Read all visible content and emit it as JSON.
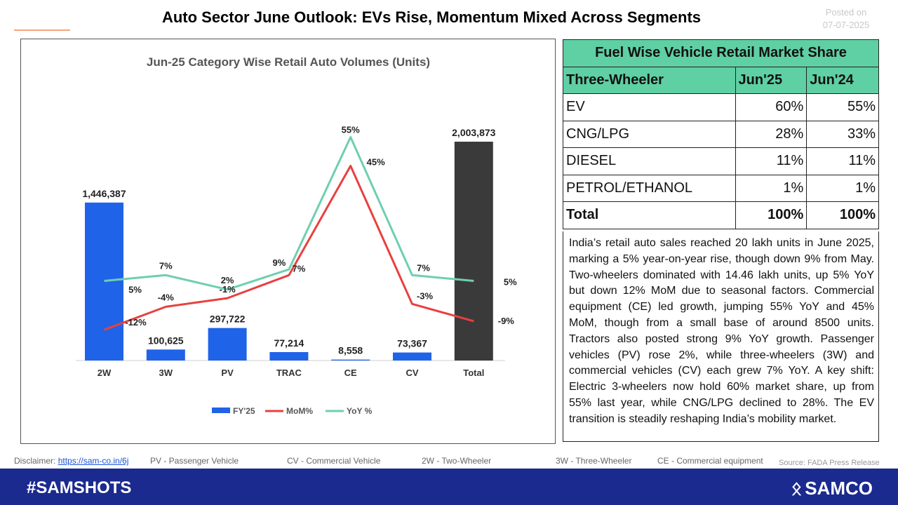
{
  "header": {
    "title": "Auto Sector June Outlook: EVs Rise, Momentum Mixed Across Segments",
    "posted_label": "Posted on",
    "posted_date": "07-07-2025"
  },
  "chart_data": {
    "type": "bar",
    "title": "Jun-25 Category Wise Retail Auto Volumes (Units)",
    "categories": [
      "2W",
      "3W",
      "PV",
      "TRAC",
      "CE",
      "CV",
      "Total"
    ],
    "bar_series": {
      "name": "FY'25",
      "values": [
        1446387,
        100625,
        297722,
        77214,
        8558,
        73367,
        2003873
      ],
      "labels": [
        "1,446,387",
        "100,625",
        "297,722",
        "77,214",
        "8,558",
        "73,367",
        "2,003,873"
      ],
      "color": "#1f63e8",
      "total_color": "#3a3a3a"
    },
    "series": [
      {
        "name": "MoM%",
        "type": "line",
        "color": "#e8403f",
        "values": [
          -12,
          -4,
          -1,
          7,
          45,
          -3,
          -9
        ],
        "labels": [
          "-12%",
          "-4%",
          "-1%",
          "7%",
          "45%",
          "-3%",
          "-9%"
        ]
      },
      {
        "name": "YoY %",
        "type": "line",
        "color": "#6ecfb0",
        "values": [
          5,
          7,
          2,
          9,
          55,
          7,
          5
        ],
        "labels": [
          "5%",
          "7%",
          "2%",
          "9%",
          "55%",
          "7%",
          "5%"
        ]
      }
    ],
    "legend": {
      "position": "bottom",
      "items": [
        "FY'25",
        "MoM%",
        "YoY %"
      ]
    },
    "grid": false
  },
  "share_table": {
    "title": "Fuel Wise Vehicle Retail Market Share",
    "headers": [
      "Three-Wheeler",
      "Jun'25",
      "Jun'24"
    ],
    "rows": [
      [
        "EV",
        "60%",
        "55%"
      ],
      [
        "CNG/LPG",
        "28%",
        "33%"
      ],
      [
        "DIESEL",
        "11%",
        "11%"
      ],
      [
        "PETROL/ETHANOL",
        "1%",
        "1%"
      ]
    ],
    "total": [
      "Total",
      "100%",
      "100%"
    ],
    "header_color": "#5fcfa4"
  },
  "description": "India’s retail auto sales reached 20 lakh units in June 2025, marking a 5% year-on-year rise, though down 9% from May. Two-wheelers dominated with 14.46 lakh units, up 5% YoY but down 12% MoM due to seasonal factors. Commercial equipment (CE) led growth, jumping 55% YoY and 45% MoM, though from a small base of around 8500 units. Tractors also posted strong 9% YoY growth. Passenger vehicles (PV) rose 2%, while three-wheelers (3W) and commercial vehicles (CV) each grew 7% YoY. A key shift: Electric 3-wheelers now hold 60% market share, up from 55% last year, while CNG/LPG declined to 28%. The EV transition is steadily reshaping India’s mobility market.",
  "footer": {
    "disclaimer_label": "Disclaimer:",
    "disclaimer_link": "https://sam-co.in/6j",
    "notes": [
      "PV - Passenger Vehicle",
      "CV - Commercial Vehicle",
      "2W - Two-Wheeler",
      "3W - Three-Wheeler",
      "CE - Commercial equipment"
    ],
    "source": "Source: FADA Press Release"
  },
  "bottom_bar": {
    "hashtag": "#SAMSHOTS",
    "brand": "SAMCO",
    "brand_icon": "samco-logo-icon",
    "color": "#1b2a8f"
  }
}
